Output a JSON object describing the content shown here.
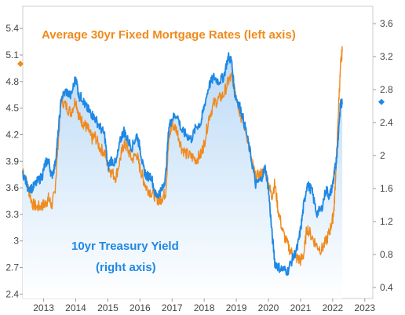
{
  "chart_data": {
    "type": "line",
    "title": "",
    "annotations": {
      "mortgage_label": "Average 30yr Fixed Mortgage Rates (left axis)",
      "treasury_label_1": "10yr Treasury Yield",
      "treasury_label_2": "(right axis)"
    },
    "colors": {
      "mortgage": "#F08A1C",
      "treasury": "#1E88E5",
      "area_top": "#BBDAF7",
      "area_bottom": "#FFFFFF"
    },
    "grid": false,
    "legend": "none",
    "x_ticks": [
      "2013",
      "2014",
      "2015",
      "2016",
      "2017",
      "2018",
      "2019",
      "2020",
      "2021",
      "2022",
      "2023"
    ],
    "x_tick_values": [
      2013,
      2014,
      2015,
      2016,
      2017,
      2018,
      2019,
      2020,
      2021,
      2022,
      2023
    ],
    "xlim": [
      2012.35,
      2023.25
    ],
    "y_left": {
      "ticks": [
        "2.4",
        "2.7",
        "3",
        "3.3",
        "3.6",
        "3.9",
        "4.2",
        "4.5",
        "4.8",
        "5.1",
        "5.4"
      ],
      "tick_values": [
        2.4,
        2.7,
        3.0,
        3.3,
        3.6,
        3.9,
        4.2,
        4.5,
        4.8,
        5.1,
        5.4
      ],
      "ylim": [
        2.35,
        5.65
      ]
    },
    "y_right": {
      "ticks": [
        "0.4",
        "0.8",
        "1.2",
        "1.6",
        "2",
        "2.4",
        "2.8",
        "3.2",
        "3.6"
      ],
      "tick_values": [
        0.4,
        0.8,
        1.2,
        1.6,
        2.0,
        2.4,
        2.8,
        3.2,
        3.6
      ],
      "ylim": [
        0.267,
        3.81
      ]
    },
    "series": [
      {
        "name": "Average 30yr Fixed Mortgage Rates (left axis)",
        "axis": "left",
        "x": [
          2012.35,
          2012.5,
          2012.65,
          2012.8,
          2012.95,
          2013.05,
          2013.15,
          2013.25,
          2013.35,
          2013.45,
          2013.55,
          2013.7,
          2013.85,
          2014.0,
          2014.1,
          2014.2,
          2014.3,
          2014.4,
          2014.5,
          2014.6,
          2014.75,
          2014.9,
          2015.0,
          2015.1,
          2015.25,
          2015.4,
          2015.5,
          2015.6,
          2015.75,
          2015.9,
          2016.0,
          2016.1,
          2016.2,
          2016.35,
          2016.5,
          2016.6,
          2016.7,
          2016.8,
          2016.9,
          2017.0,
          2017.15,
          2017.3,
          2017.45,
          2017.6,
          2017.75,
          2017.9,
          2018.0,
          2018.15,
          2018.3,
          2018.45,
          2018.6,
          2018.75,
          2018.85,
          2018.95,
          2019.05,
          2019.15,
          2019.3,
          2019.45,
          2019.6,
          2019.75,
          2019.9,
          2020.0,
          2020.1,
          2020.2,
          2020.3,
          2020.45,
          2020.6,
          2020.75,
          2020.9,
          2021.0,
          2021.1,
          2021.2,
          2021.35,
          2021.5,
          2021.65,
          2021.8,
          2021.9,
          2022.0,
          2022.05,
          2022.1,
          2022.15,
          2022.2,
          2022.25,
          2022.3
        ],
        "y": [
          3.82,
          3.62,
          3.42,
          3.38,
          3.4,
          3.42,
          3.48,
          3.4,
          3.55,
          4.1,
          4.6,
          4.52,
          4.45,
          4.6,
          4.4,
          4.35,
          4.3,
          4.25,
          4.15,
          4.18,
          4.05,
          4.0,
          3.85,
          3.78,
          3.72,
          3.95,
          4.1,
          4.05,
          3.92,
          3.98,
          3.82,
          3.7,
          3.6,
          3.55,
          3.5,
          3.45,
          3.5,
          3.55,
          4.15,
          4.32,
          4.25,
          4.05,
          3.98,
          3.95,
          3.92,
          3.98,
          4.1,
          4.4,
          4.55,
          4.6,
          4.65,
          4.8,
          4.85,
          4.75,
          4.55,
          4.4,
          4.25,
          3.95,
          3.72,
          3.75,
          3.8,
          3.65,
          3.5,
          3.65,
          3.35,
          3.1,
          2.95,
          2.85,
          2.8,
          2.78,
          2.85,
          3.15,
          3.05,
          2.95,
          2.9,
          3.0,
          3.1,
          3.25,
          3.4,
          3.8,
          4.2,
          4.65,
          5.0,
          5.15
        ]
      },
      {
        "name": "10yr Treasury Yield (right axis)",
        "axis": "right",
        "x": [
          2012.35,
          2012.5,
          2012.65,
          2012.8,
          2012.95,
          2013.05,
          2013.15,
          2013.25,
          2013.35,
          2013.45,
          2013.55,
          2013.7,
          2013.85,
          2014.0,
          2014.1,
          2014.2,
          2014.3,
          2014.4,
          2014.5,
          2014.6,
          2014.75,
          2014.9,
          2015.0,
          2015.1,
          2015.25,
          2015.4,
          2015.5,
          2015.6,
          2015.75,
          2015.9,
          2016.0,
          2016.1,
          2016.2,
          2016.35,
          2016.5,
          2016.6,
          2016.7,
          2016.8,
          2016.9,
          2017.0,
          2017.15,
          2017.3,
          2017.45,
          2017.6,
          2017.75,
          2017.9,
          2018.0,
          2018.15,
          2018.3,
          2018.45,
          2018.6,
          2018.75,
          2018.85,
          2018.95,
          2019.05,
          2019.15,
          2019.3,
          2019.45,
          2019.6,
          2019.75,
          2019.9,
          2020.0,
          2020.1,
          2020.2,
          2020.3,
          2020.45,
          2020.6,
          2020.75,
          2020.9,
          2021.0,
          2021.1,
          2021.2,
          2021.35,
          2021.5,
          2021.65,
          2021.8,
          2021.9,
          2022.0,
          2022.05,
          2022.1,
          2022.15,
          2022.2,
          2022.25,
          2022.3
        ],
        "y": [
          1.8,
          1.62,
          1.6,
          1.68,
          1.75,
          1.9,
          1.95,
          1.75,
          1.88,
          2.25,
          2.7,
          2.78,
          2.72,
          2.95,
          2.72,
          2.7,
          2.6,
          2.55,
          2.5,
          2.45,
          2.35,
          2.25,
          1.85,
          1.95,
          1.9,
          2.2,
          2.3,
          2.2,
          2.1,
          2.25,
          2.1,
          1.85,
          1.75,
          1.75,
          1.5,
          1.55,
          1.6,
          1.75,
          2.35,
          2.45,
          2.5,
          2.3,
          2.25,
          2.2,
          2.35,
          2.4,
          2.6,
          2.85,
          2.95,
          2.9,
          2.95,
          3.2,
          3.15,
          2.75,
          2.65,
          2.55,
          2.3,
          2.0,
          1.65,
          1.7,
          1.85,
          1.6,
          1.1,
          0.7,
          0.65,
          0.62,
          0.6,
          0.75,
          0.88,
          1.1,
          1.4,
          1.65,
          1.58,
          1.3,
          1.35,
          1.6,
          1.5,
          1.65,
          1.78,
          1.9,
          2.1,
          2.4,
          2.65,
          2.62
        ]
      }
    ],
    "end_markers": {
      "left_value": 5.0,
      "right_value": 2.65
    }
  }
}
